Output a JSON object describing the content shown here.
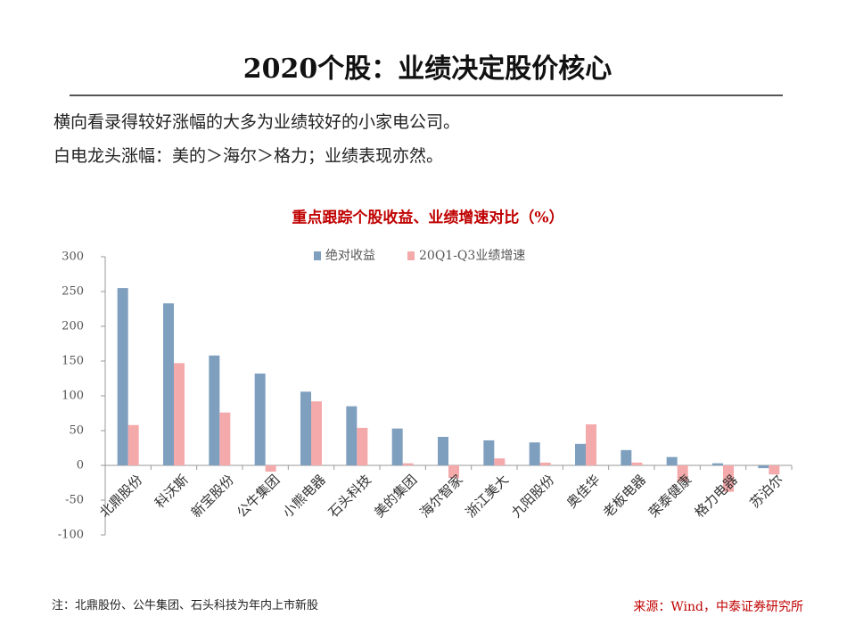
{
  "header": {
    "title": "2020个股：业绩决定股价核心"
  },
  "text": {
    "lines": [
      "横向看录得较好涨幅的大多为业绩较好的小家电公司。",
      "白电龙头涨幅：美的＞海尔＞格力；业绩表现亦然。"
    ]
  },
  "chart_data": {
    "type": "bar",
    "title": "重点跟踪个股收益、业绩增速对比（%）",
    "categories": [
      "北鼎股份",
      "科沃斯",
      "新宝股份",
      "公牛集团",
      "小熊电器",
      "石头科技",
      "美的集团",
      "海尔智家",
      "浙江美大",
      "九阳股份",
      "奥佳华",
      "老板电器",
      "荣泰健康",
      "格力电器",
      "苏泊尔"
    ],
    "series": [
      {
        "name": "绝对收益",
        "color": "#7f9fbf",
        "values": [
          255,
          233,
          158,
          132,
          106,
          85,
          53,
          41,
          36,
          33,
          31,
          22,
          12,
          3,
          -4
        ]
      },
      {
        "name": "20Q1-Q3业绩增速",
        "color": "#f4a9ab",
        "values": [
          58,
          147,
          76,
          -9,
          92,
          54,
          3,
          -18,
          10,
          4,
          59,
          4,
          -23,
          -38,
          -13
        ]
      }
    ],
    "ylim": [
      -100,
      300
    ],
    "yticks": [
      300,
      250,
      200,
      150,
      100,
      50,
      0,
      -50,
      -100
    ],
    "grid": false
  },
  "footer": {
    "note": "注：北鼎股份、公牛集团、石头科技为年内上市新股",
    "source": "来源：Wind，中泰证券研究所"
  }
}
